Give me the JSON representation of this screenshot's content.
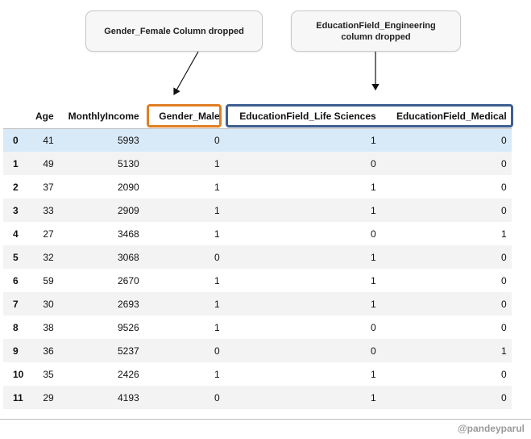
{
  "callouts": {
    "left": "Gender_Female Column dropped",
    "right_line1": "EducationField_Engineering",
    "right_line2": "column dropped"
  },
  "table": {
    "columns": [
      "",
      "Age",
      "MonthlyIncome",
      "Gender_Male",
      "EducationField_Life Sciences",
      "EducationField_Medical"
    ],
    "rows": [
      {
        "index": "0",
        "cells": [
          "41",
          "5993",
          "0",
          "1",
          "0"
        ]
      },
      {
        "index": "1",
        "cells": [
          "49",
          "5130",
          "1",
          "0",
          "0"
        ]
      },
      {
        "index": "2",
        "cells": [
          "37",
          "2090",
          "1",
          "1",
          "0"
        ]
      },
      {
        "index": "3",
        "cells": [
          "33",
          "2909",
          "1",
          "1",
          "0"
        ]
      },
      {
        "index": "4",
        "cells": [
          "27",
          "3468",
          "1",
          "0",
          "1"
        ]
      },
      {
        "index": "5",
        "cells": [
          "32",
          "3068",
          "0",
          "1",
          "0"
        ]
      },
      {
        "index": "6",
        "cells": [
          "59",
          "2670",
          "1",
          "1",
          "0"
        ]
      },
      {
        "index": "7",
        "cells": [
          "30",
          "2693",
          "1",
          "1",
          "0"
        ]
      },
      {
        "index": "8",
        "cells": [
          "38",
          "9526",
          "1",
          "0",
          "0"
        ]
      },
      {
        "index": "9",
        "cells": [
          "36",
          "5237",
          "0",
          "0",
          "1"
        ]
      },
      {
        "index": "10",
        "cells": [
          "35",
          "2426",
          "1",
          "1",
          "0"
        ]
      },
      {
        "index": "11",
        "cells": [
          "29",
          "4193",
          "0",
          "1",
          "0"
        ]
      }
    ],
    "highlight_row": 0
  },
  "colors": {
    "orange_box": "#e07f25",
    "blue_box": "#3d5f8f",
    "highlight_row": "#d8eaf8"
  },
  "watermark": "@pandeyparul"
}
